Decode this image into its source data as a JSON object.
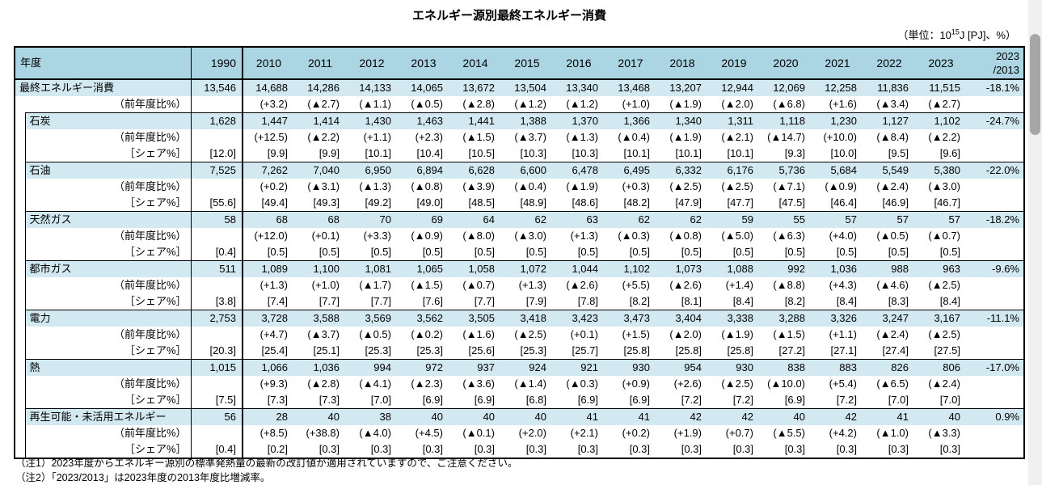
{
  "title": "エネルギー源別最終エネルギー消費",
  "unit": {
    "prefix": "（単位：10",
    "sup": "15",
    "suffix": "J [PJ]、%）"
  },
  "table": {
    "header": {
      "label": "年度",
      "base_year": "1990",
      "years": [
        "2010",
        "2011",
        "2012",
        "2013",
        "2014",
        "2015",
        "2016",
        "2017",
        "2018",
        "2019",
        "2020",
        "2021",
        "2022",
        "2023"
      ],
      "ratio_label": "2023\n/2013"
    },
    "row_labels": {
      "yoy": "（前年度比%）",
      "share": "［シェア%］"
    },
    "blocks": [
      {
        "name": "最終エネルギー消費",
        "v1990": "13,546",
        "values": [
          "14,688",
          "14,286",
          "14,133",
          "14,065",
          "13,672",
          "13,504",
          "13,340",
          "13,468",
          "13,207",
          "12,944",
          "12,069",
          "12,258",
          "11,836",
          "11,515"
        ],
        "yoy": [
          "(+3.2)",
          "(▲2.7)",
          "(▲1.1)",
          "(▲0.5)",
          "(▲2.8)",
          "(▲1.2)",
          "(▲1.2)",
          "(+1.0)",
          "(▲1.9)",
          "(▲2.0)",
          "(▲6.8)",
          "(+1.6)",
          "(▲3.4)",
          "(▲2.7)"
        ],
        "ratio": "-18.1%"
      },
      {
        "name": "石炭",
        "v1990": "1,628",
        "values": [
          "1,447",
          "1,414",
          "1,430",
          "1,463",
          "1,441",
          "1,388",
          "1,370",
          "1,366",
          "1,340",
          "1,311",
          "1,118",
          "1,230",
          "1,127",
          "1,102"
        ],
        "yoy": [
          "(+12.5)",
          "(▲2.2)",
          "(+1.1)",
          "(+2.3)",
          "(▲1.5)",
          "(▲3.7)",
          "(▲1.3)",
          "(▲0.4)",
          "(▲1.9)",
          "(▲2.1)",
          "(▲14.7)",
          "(+10.0)",
          "(▲8.4)",
          "(▲2.2)"
        ],
        "share1990": "[12.0]",
        "share": [
          "[9.9]",
          "[9.9]",
          "[10.1]",
          "[10.4]",
          "[10.5]",
          "[10.3]",
          "[10.3]",
          "[10.1]",
          "[10.1]",
          "[10.1]",
          "[9.3]",
          "[10.0]",
          "[9.5]",
          "[9.6]"
        ],
        "ratio": "-24.7%"
      },
      {
        "name": "石油",
        "v1990": "7,525",
        "values": [
          "7,262",
          "7,040",
          "6,950",
          "6,894",
          "6,628",
          "6,600",
          "6,478",
          "6,495",
          "6,332",
          "6,176",
          "5,736",
          "5,684",
          "5,549",
          "5,380"
        ],
        "yoy": [
          "(+0.2)",
          "(▲3.1)",
          "(▲1.3)",
          "(▲0.8)",
          "(▲3.9)",
          "(▲0.4)",
          "(▲1.9)",
          "(+0.3)",
          "(▲2.5)",
          "(▲2.5)",
          "(▲7.1)",
          "(▲0.9)",
          "(▲2.4)",
          "(▲3.0)"
        ],
        "share1990": "[55.6]",
        "share": [
          "[49.4]",
          "[49.3]",
          "[49.2]",
          "[49.0]",
          "[48.5]",
          "[48.9]",
          "[48.6]",
          "[48.2]",
          "[47.9]",
          "[47.7]",
          "[47.5]",
          "[46.4]",
          "[46.9]",
          "[46.7]"
        ],
        "ratio": "-22.0%"
      },
      {
        "name": "天然ガス",
        "v1990": "58",
        "values": [
          "68",
          "68",
          "70",
          "69",
          "64",
          "62",
          "63",
          "62",
          "62",
          "59",
          "55",
          "57",
          "57",
          "57"
        ],
        "yoy": [
          "(+12.0)",
          "(+0.1)",
          "(+3.3)",
          "(▲0.9)",
          "(▲8.0)",
          "(▲3.0)",
          "(+1.3)",
          "(▲0.3)",
          "(▲0.8)",
          "(▲5.0)",
          "(▲6.3)",
          "(+4.0)",
          "(▲0.5)",
          "(▲0.7)"
        ],
        "share1990": "[0.4]",
        "share": [
          "[0.5]",
          "[0.5]",
          "[0.5]",
          "[0.5]",
          "[0.5]",
          "[0.5]",
          "[0.5]",
          "[0.5]",
          "[0.5]",
          "[0.5]",
          "[0.5]",
          "[0.5]",
          "[0.5]",
          "[0.5]"
        ],
        "ratio": "-18.2%"
      },
      {
        "name": "都市ガス",
        "v1990": "511",
        "values": [
          "1,089",
          "1,100",
          "1,081",
          "1,065",
          "1,058",
          "1,072",
          "1,044",
          "1,102",
          "1,073",
          "1,088",
          "992",
          "1,036",
          "988",
          "963"
        ],
        "yoy": [
          "(+1.3)",
          "(+1.0)",
          "(▲1.7)",
          "(▲1.5)",
          "(▲0.7)",
          "(+1.3)",
          "(▲2.6)",
          "(+5.5)",
          "(▲2.6)",
          "(+1.4)",
          "(▲8.8)",
          "(+4.3)",
          "(▲4.6)",
          "(▲2.5)"
        ],
        "share1990": "[3.8]",
        "share": [
          "[7.4]",
          "[7.7]",
          "[7.7]",
          "[7.6]",
          "[7.7]",
          "[7.9]",
          "[7.8]",
          "[8.2]",
          "[8.1]",
          "[8.4]",
          "[8.2]",
          "[8.4]",
          "[8.3]",
          "[8.4]"
        ],
        "ratio": "-9.6%"
      },
      {
        "name": "電力",
        "v1990": "2,753",
        "values": [
          "3,728",
          "3,588",
          "3,569",
          "3,562",
          "3,505",
          "3,418",
          "3,423",
          "3,473",
          "3,404",
          "3,338",
          "3,288",
          "3,326",
          "3,247",
          "3,167"
        ],
        "yoy": [
          "(+4.7)",
          "(▲3.7)",
          "(▲0.5)",
          "(▲0.2)",
          "(▲1.6)",
          "(▲2.5)",
          "(+0.1)",
          "(+1.5)",
          "(▲2.0)",
          "(▲1.9)",
          "(▲1.5)",
          "(+1.1)",
          "(▲2.4)",
          "(▲2.5)"
        ],
        "share1990": "[20.3]",
        "share": [
          "[25.4]",
          "[25.1]",
          "[25.3]",
          "[25.3]",
          "[25.6]",
          "[25.3]",
          "[25.7]",
          "[25.8]",
          "[25.8]",
          "[25.8]",
          "[27.2]",
          "[27.1]",
          "[27.4]",
          "[27.5]"
        ],
        "ratio": "-11.1%"
      },
      {
        "name": "熱",
        "v1990": "1,015",
        "values": [
          "1,066",
          "1,036",
          "994",
          "972",
          "937",
          "924",
          "921",
          "930",
          "954",
          "930",
          "838",
          "883",
          "826",
          "806"
        ],
        "yoy": [
          "(+9.3)",
          "(▲2.8)",
          "(▲4.1)",
          "(▲2.3)",
          "(▲3.6)",
          "(▲1.4)",
          "(▲0.3)",
          "(+0.9)",
          "(+2.6)",
          "(▲2.5)",
          "(▲10.0)",
          "(+5.4)",
          "(▲6.5)",
          "(▲2.4)"
        ],
        "share1990": "[7.5]",
        "share": [
          "[7.3]",
          "[7.3]",
          "[7.0]",
          "[6.9]",
          "[6.9]",
          "[6.8]",
          "[6.9]",
          "[6.9]",
          "[7.2]",
          "[7.2]",
          "[6.9]",
          "[7.2]",
          "[7.0]",
          "[7.0]"
        ],
        "ratio": "-17.0%"
      },
      {
        "name": "再生可能・未活用エネルギー",
        "v1990": "56",
        "values": [
          "28",
          "40",
          "38",
          "40",
          "40",
          "40",
          "41",
          "41",
          "42",
          "42",
          "40",
          "42",
          "41",
          "40"
        ],
        "yoy": [
          "(+8.5)",
          "(+38.8)",
          "(▲4.0)",
          "(+4.5)",
          "(▲0.1)",
          "(+2.0)",
          "(+2.1)",
          "(+0.2)",
          "(+1.9)",
          "(+0.7)",
          "(▲5.5)",
          "(+4.2)",
          "(▲1.0)",
          "(▲3.3)"
        ],
        "share1990": "[0.4]",
        "share": [
          "[0.2]",
          "[0.3]",
          "[0.3]",
          "[0.3]",
          "[0.3]",
          "[0.3]",
          "[0.3]",
          "[0.3]",
          "[0.3]",
          "[0.3]",
          "[0.3]",
          "[0.3]",
          "[0.3]",
          "[0.3]"
        ],
        "ratio": "0.9%"
      }
    ]
  },
  "notes": [
    "（注1）2023年度からエネルギー源別の標準発熱量の最新の改訂値が適用されていますので、ご注意ください。",
    "（注2）「2023/2013」は2023年度の2013年度比増減率。"
  ]
}
